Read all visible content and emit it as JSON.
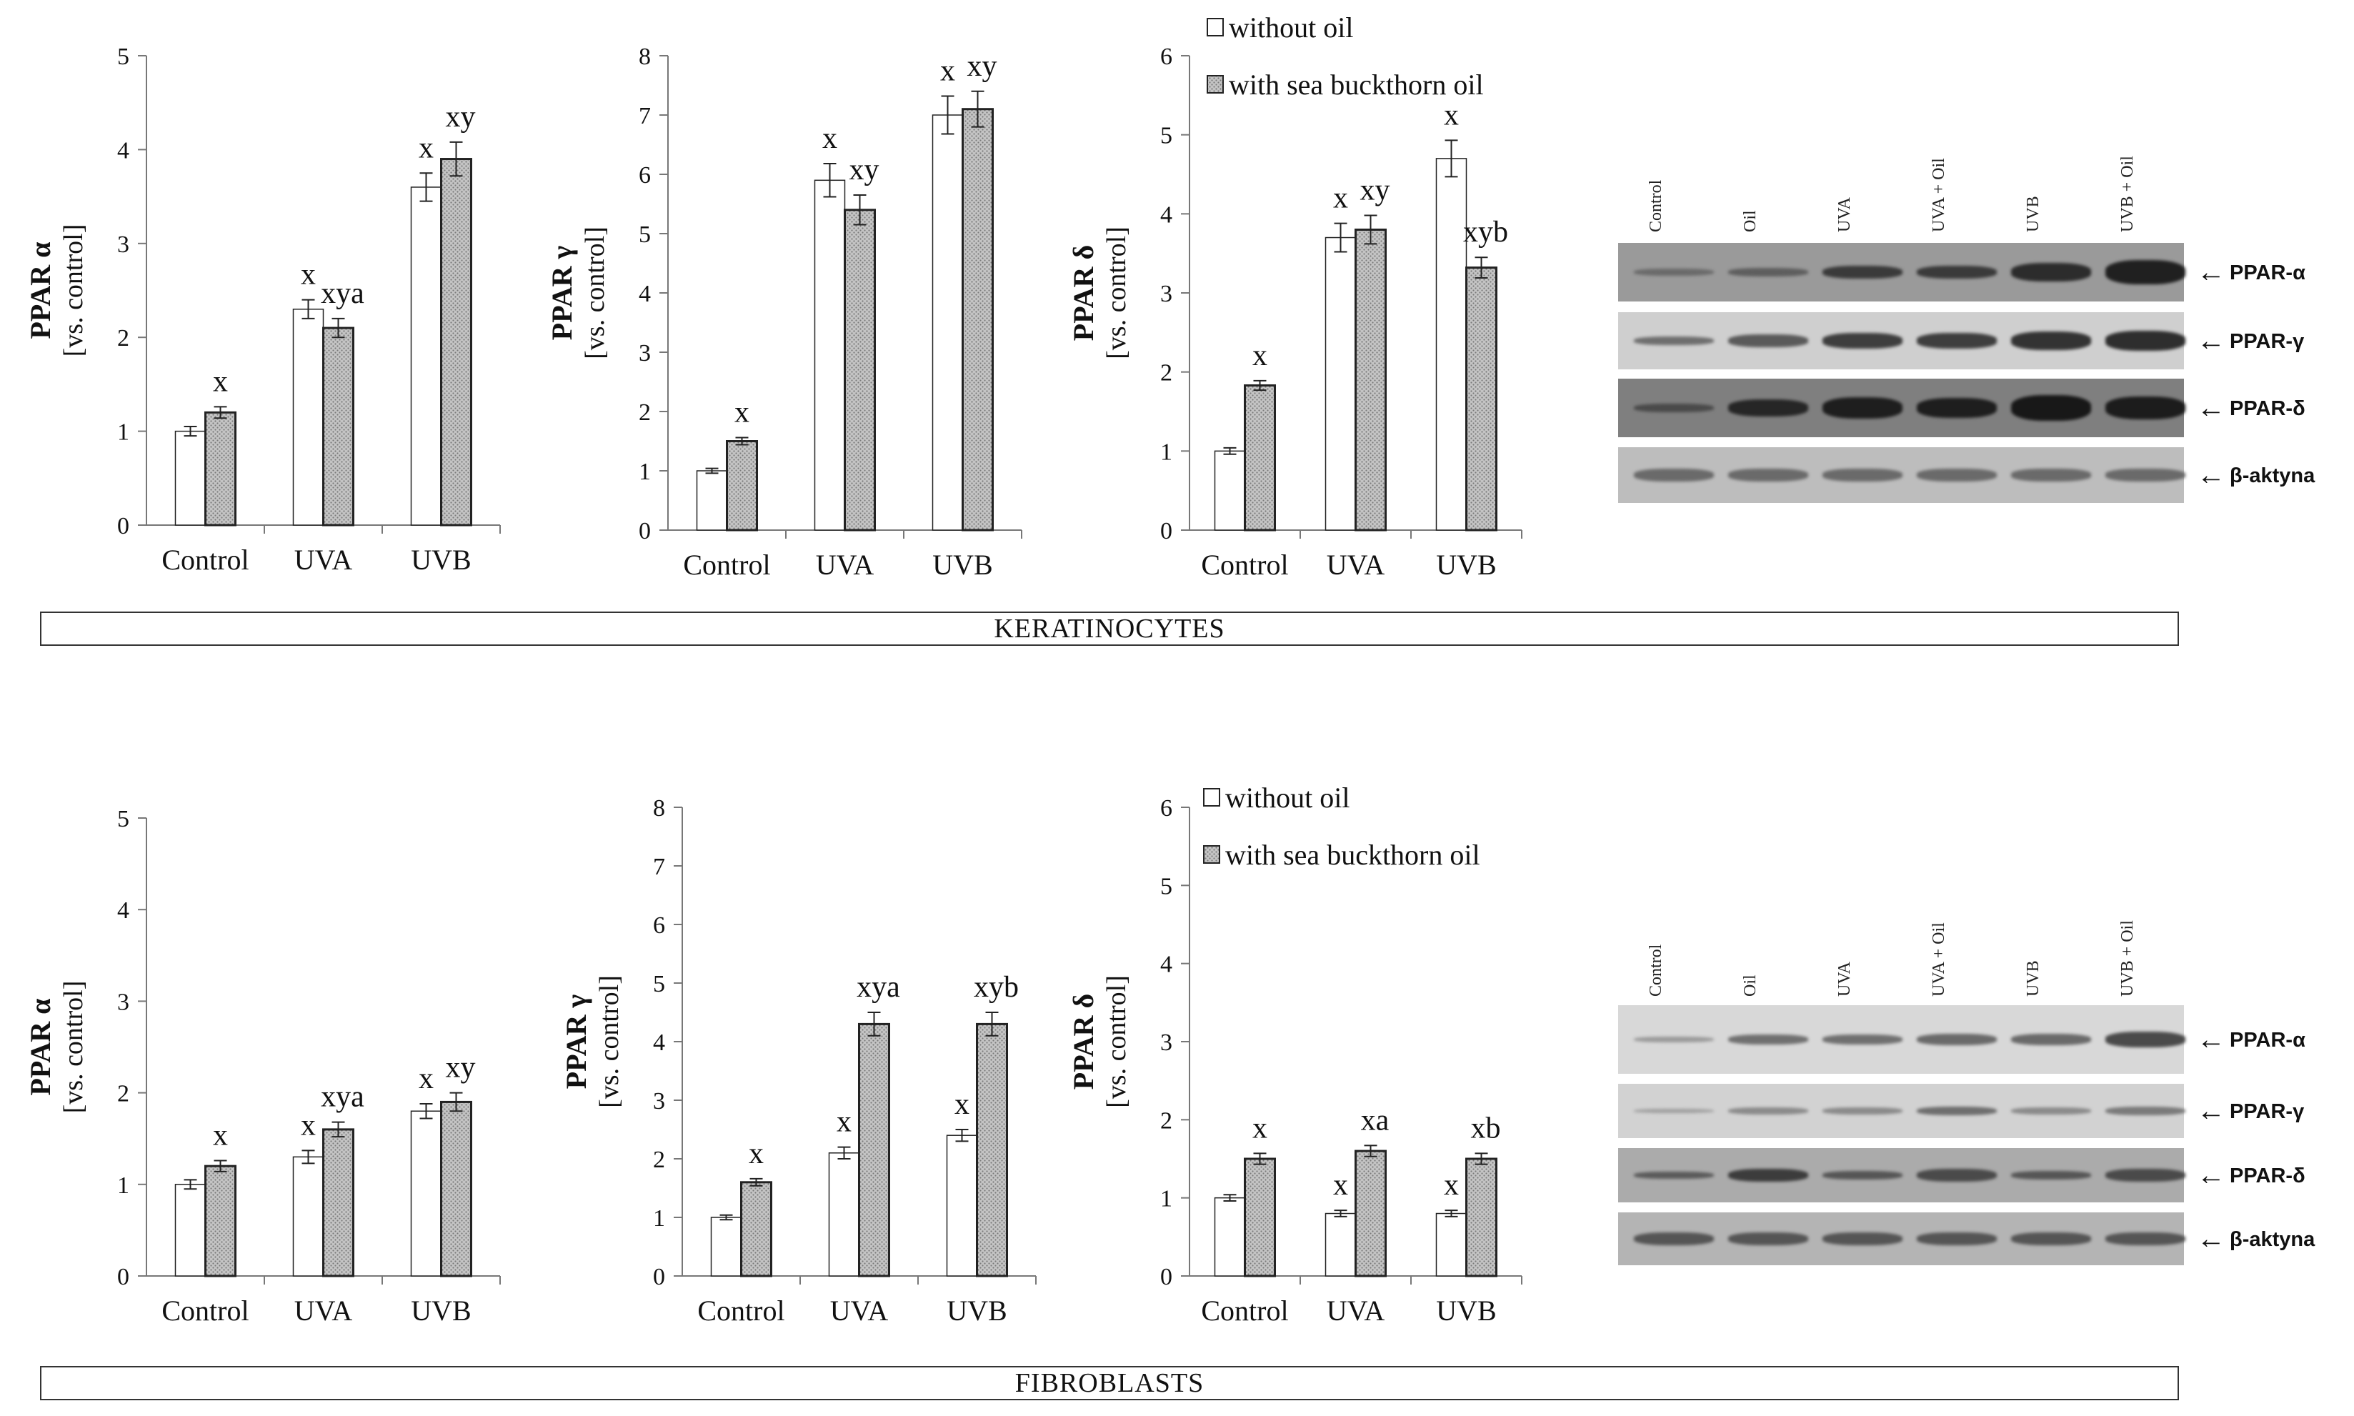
{
  "chart_data": [
    {
      "id": "k-alpha",
      "type": "bar",
      "section": "KERATINOCYTES",
      "ylabel": "PPAR α",
      "ysub": "[vs. control]",
      "ylim": [
        0,
        5
      ],
      "yticks": [
        0,
        1,
        2,
        3,
        4,
        5
      ],
      "categories": [
        "Control",
        "UVA",
        "UVB"
      ],
      "series": [
        {
          "name": "without oil",
          "values": [
            1.0,
            2.3,
            3.6
          ],
          "errors": [
            0.05,
            0.1,
            0.15
          ],
          "labels": [
            "",
            "x",
            "x"
          ]
        },
        {
          "name": "with sea buckthorn oil",
          "values": [
            1.2,
            2.1,
            3.9
          ],
          "errors": [
            0.06,
            0.1,
            0.18
          ],
          "labels": [
            "x",
            "xya",
            "xy"
          ]
        }
      ]
    },
    {
      "id": "k-gamma",
      "type": "bar",
      "section": "KERATINOCYTES",
      "ylabel": "PPAR γ",
      "ysub": "[vs. control]",
      "ylim": [
        0,
        8
      ],
      "yticks": [
        0,
        1,
        2,
        3,
        4,
        5,
        6,
        7,
        8
      ],
      "categories": [
        "Control",
        "UVA",
        "UVB"
      ],
      "series": [
        {
          "name": "without oil",
          "values": [
            1.0,
            5.9,
            7.0
          ],
          "errors": [
            0.04,
            0.28,
            0.32
          ],
          "labels": [
            "",
            "x",
            "x"
          ]
        },
        {
          "name": "with sea buckthorn oil",
          "values": [
            1.5,
            5.4,
            7.1
          ],
          "errors": [
            0.06,
            0.25,
            0.3
          ],
          "labels": [
            "x",
            "xy",
            "xy"
          ]
        }
      ]
    },
    {
      "id": "k-delta",
      "type": "bar",
      "section": "KERATINOCYTES",
      "ylabel": "PPAR δ",
      "ysub": "[vs. control]",
      "ylim": [
        0,
        6
      ],
      "yticks": [
        0,
        1,
        2,
        3,
        4,
        5,
        6
      ],
      "categories": [
        "Control",
        "UVA",
        "UVB"
      ],
      "series": [
        {
          "name": "without oil",
          "values": [
            1.0,
            3.7,
            4.7
          ],
          "errors": [
            0.04,
            0.18,
            0.23
          ],
          "labels": [
            "",
            "x",
            "x"
          ]
        },
        {
          "name": "with sea buckthorn oil",
          "values": [
            1.83,
            3.8,
            3.32
          ],
          "errors": [
            0.06,
            0.18,
            0.13
          ],
          "labels": [
            "x",
            "xy",
            "xyb"
          ]
        }
      ]
    },
    {
      "id": "f-alpha",
      "type": "bar",
      "section": "FIBROBLASTS",
      "ylabel": "PPAR α",
      "ysub": "[vs. control]",
      "ylim": [
        0,
        5
      ],
      "yticks": [
        0,
        1,
        2,
        3,
        4,
        5
      ],
      "categories": [
        "Control",
        "UVA",
        "UVB"
      ],
      "series": [
        {
          "name": "without oil",
          "values": [
            1.0,
            1.3,
            1.8
          ],
          "errors": [
            0.05,
            0.07,
            0.08
          ],
          "labels": [
            "",
            "x",
            "x"
          ]
        },
        {
          "name": "with sea buckthorn oil",
          "values": [
            1.2,
            1.6,
            1.9
          ],
          "errors": [
            0.06,
            0.08,
            0.1
          ],
          "labels": [
            "x",
            "xya",
            "xy"
          ]
        }
      ]
    },
    {
      "id": "f-gamma",
      "type": "bar",
      "section": "FIBROBLASTS",
      "ylabel": "PPAR γ",
      "ysub": "[vs. control]",
      "ylim": [
        0,
        8
      ],
      "yticks": [
        0,
        1,
        2,
        3,
        4,
        5,
        6,
        7,
        8
      ],
      "categories": [
        "Control",
        "UVA",
        "UVB"
      ],
      "series": [
        {
          "name": "without oil",
          "values": [
            1.0,
            2.1,
            2.4
          ],
          "errors": [
            0.04,
            0.1,
            0.1
          ],
          "labels": [
            "",
            "x",
            "x"
          ]
        },
        {
          "name": "with sea buckthorn oil",
          "values": [
            1.6,
            4.3,
            4.3
          ],
          "errors": [
            0.06,
            0.2,
            0.2
          ],
          "labels": [
            "x",
            "xya",
            "xyb"
          ]
        }
      ]
    },
    {
      "id": "f-delta",
      "type": "bar",
      "section": "FIBROBLASTS",
      "ylabel": "PPAR δ",
      "ysub": "[vs. control]",
      "ylim": [
        0,
        6
      ],
      "yticks": [
        0,
        1,
        2,
        3,
        4,
        5,
        6
      ],
      "categories": [
        "Control",
        "UVA",
        "UVB"
      ],
      "series": [
        {
          "name": "without oil",
          "values": [
            1.0,
            0.8,
            0.8
          ],
          "errors": [
            0.04,
            0.04,
            0.04
          ],
          "labels": [
            "",
            "x",
            "x"
          ]
        },
        {
          "name": "with sea buckthorn oil",
          "values": [
            1.5,
            1.6,
            1.5
          ],
          "errors": [
            0.07,
            0.07,
            0.07
          ],
          "labels": [
            "x",
            "xa",
            "xb"
          ]
        }
      ]
    }
  ],
  "legend": {
    "without_oil": "without oil",
    "with_oil": "with sea buckthorn oil"
  },
  "sections": {
    "top": "KERATINOCYTES",
    "bottom": "FIBROBLASTS"
  },
  "blots": {
    "lanes": [
      "Control",
      "Oil",
      "UVA",
      "UVA + Oil",
      "UVB",
      "UVB + Oil"
    ],
    "rows": [
      "PPAR-α",
      "PPAR-γ",
      "PPAR-δ",
      "β-aktyna"
    ],
    "arrow": "←"
  },
  "colors": {
    "bar_without": "#ffffff",
    "bar_with": "#bdbdbd",
    "axis": "#777777",
    "bar_stroke": "#222222"
  }
}
